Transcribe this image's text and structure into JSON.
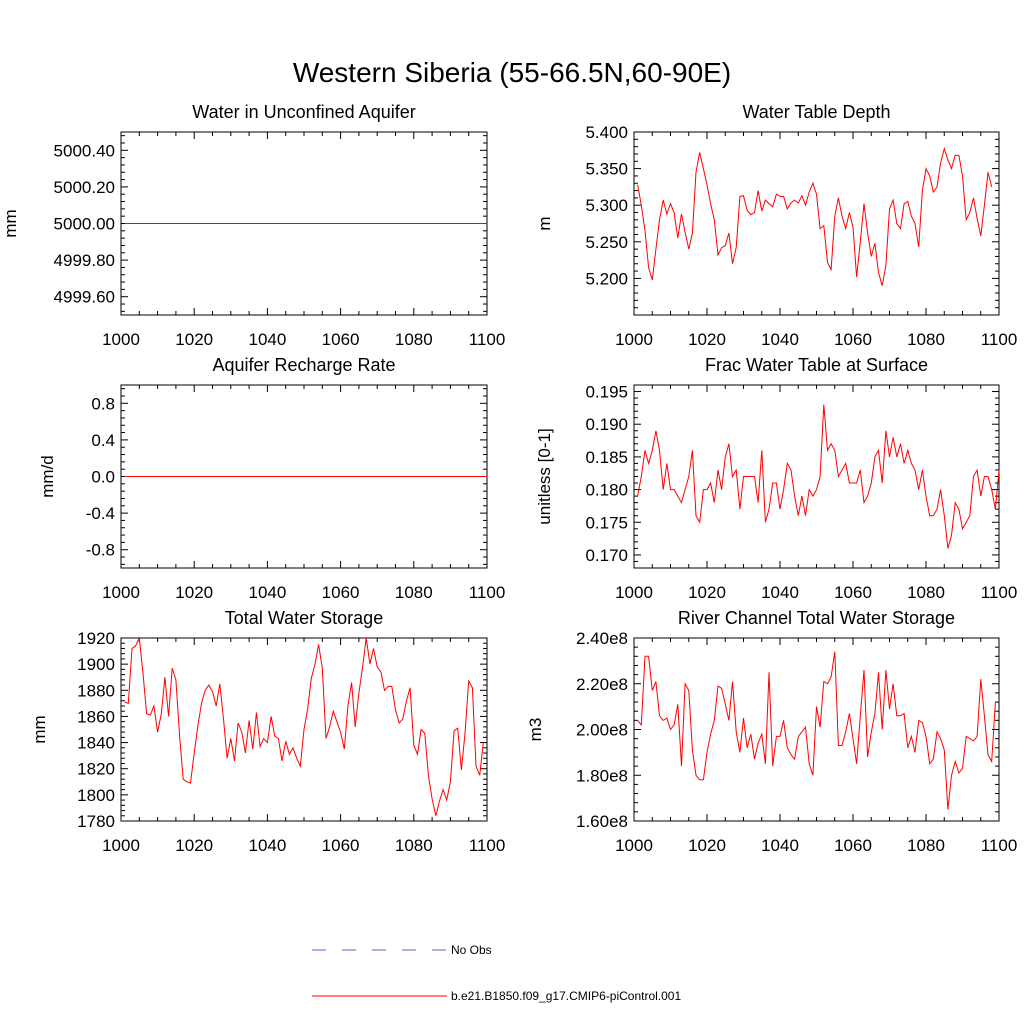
{
  "figure": {
    "title": "Western Siberia (55-66.5N,60-90E)"
  },
  "legend": {
    "entries": [
      {
        "label": "No Obs",
        "color": "#5566cc",
        "dashed": true
      },
      {
        "label": "b.e21.B1850.f09_g17.CMIP6-piControl.001",
        "color": "#ff0000",
        "dashed": false
      }
    ]
  },
  "chart_data": [
    {
      "type": "line",
      "title": "Water in Unconfined Aquifer",
      "ylabel": "mm",
      "xlim": [
        1000,
        1100
      ],
      "ylim": [
        4999.5,
        5000.5
      ],
      "xticks": [
        1000,
        1020,
        1040,
        1060,
        1080,
        1100
      ],
      "yticks": [
        4999.6,
        4999.8,
        5000.0,
        5000.2,
        5000.4
      ],
      "ytick_labels": [
        "4999.60",
        "4999.80",
        "5000.00",
        "5000.20",
        "5000.40"
      ],
      "series": [
        {
          "name": "b.e21.B1850.f09_g17.CMIP6-piControl.001",
          "color": "#ff0000",
          "x": [
            1001,
            1100
          ],
          "values": [
            5000.0,
            5000.0
          ]
        }
      ]
    },
    {
      "type": "line",
      "title": "Water Table Depth",
      "ylabel": "m",
      "xlim": [
        1000,
        1100
      ],
      "ylim": [
        5.15,
        5.4
      ],
      "xticks": [
        1000,
        1020,
        1040,
        1060,
        1080,
        1100
      ],
      "yticks": [
        5.2,
        5.25,
        5.3,
        5.35,
        5.4
      ],
      "ytick_labels": [
        "5.200",
        "5.250",
        "5.300",
        "5.350",
        "5.400"
      ],
      "series": [
        {
          "name": "b.e21.B1850.f09_g17.CMIP6-piControl.001",
          "color": "#ff0000",
          "x_start": 1001,
          "values": [
            5.328,
            5.3,
            5.265,
            5.215,
            5.198,
            5.24,
            5.28,
            5.307,
            5.288,
            5.302,
            5.29,
            5.255,
            5.288,
            5.263,
            5.24,
            5.262,
            5.345,
            5.372,
            5.35,
            5.328,
            5.302,
            5.28,
            5.232,
            5.242,
            5.245,
            5.262,
            5.22,
            5.242,
            5.312,
            5.313,
            5.293,
            5.287,
            5.29,
            5.32,
            5.292,
            5.307,
            5.302,
            5.298,
            5.315,
            5.312,
            5.312,
            5.295,
            5.303,
            5.307,
            5.303,
            5.313,
            5.3,
            5.318,
            5.33,
            5.315,
            5.268,
            5.272,
            5.222,
            5.212,
            5.285,
            5.31,
            5.285,
            5.268,
            5.29,
            5.27,
            5.202,
            5.25,
            5.302,
            5.262,
            5.23,
            5.248,
            5.208,
            5.19,
            5.218,
            5.295,
            5.307,
            5.275,
            5.268,
            5.302,
            5.305,
            5.285,
            5.275,
            5.243,
            5.32,
            5.35,
            5.34,
            5.318,
            5.325,
            5.358,
            5.377,
            5.362,
            5.35,
            5.368,
            5.368,
            5.34,
            5.28,
            5.29,
            5.31,
            5.282,
            5.258,
            5.3,
            5.345,
            5.325
          ]
        }
      ]
    },
    {
      "type": "line",
      "title": "Aquifer Recharge Rate",
      "ylabel": "mm/d",
      "xlim": [
        1000,
        1100
      ],
      "ylim": [
        -1.0,
        1.0
      ],
      "xticks": [
        1000,
        1020,
        1040,
        1060,
        1080,
        1100
      ],
      "yticks": [
        -0.8,
        -0.4,
        0.0,
        0.4,
        0.8
      ],
      "ytick_labels": [
        "-0.8",
        "-0.4",
        "0.0",
        "0.4",
        "0.8"
      ],
      "series": [
        {
          "name": "b.e21.B1850.f09_g17.CMIP6-piControl.001",
          "color": "#ff0000",
          "x": [
            1001,
            1100
          ],
          "values": [
            0.0,
            0.0
          ]
        }
      ]
    },
    {
      "type": "line",
      "title": "Frac Water Table at Surface",
      "ylabel": "unitless [0-1]",
      "xlim": [
        1000,
        1100
      ],
      "ylim": [
        0.168,
        0.196
      ],
      "xticks": [
        1000,
        1020,
        1040,
        1060,
        1080,
        1100
      ],
      "yticks": [
        0.17,
        0.175,
        0.18,
        0.185,
        0.19,
        0.195
      ],
      "ytick_labels": [
        "0.170",
        "0.175",
        "0.180",
        "0.185",
        "0.190",
        "0.195"
      ],
      "series": [
        {
          "name": "b.e21.B1850.f09_g17.CMIP6-piControl.001",
          "color": "#ff0000",
          "x_start": 1001,
          "values": [
            0.179,
            0.182,
            0.186,
            0.184,
            0.186,
            0.189,
            0.186,
            0.18,
            0.184,
            0.18,
            0.18,
            0.179,
            0.178,
            0.18,
            0.182,
            0.186,
            0.176,
            0.175,
            0.18,
            0.18,
            0.181,
            0.178,
            0.183,
            0.18,
            0.185,
            0.187,
            0.182,
            0.183,
            0.177,
            0.182,
            0.182,
            0.182,
            0.182,
            0.178,
            0.186,
            0.175,
            0.177,
            0.181,
            0.181,
            0.177,
            0.18,
            0.184,
            0.183,
            0.179,
            0.176,
            0.179,
            0.176,
            0.18,
            0.179,
            0.18,
            0.182,
            0.193,
            0.186,
            0.187,
            0.186,
            0.182,
            0.183,
            0.184,
            0.181,
            0.181,
            0.181,
            0.183,
            0.178,
            0.179,
            0.181,
            0.185,
            0.186,
            0.181,
            0.189,
            0.185,
            0.188,
            0.185,
            0.187,
            0.184,
            0.186,
            0.184,
            0.183,
            0.18,
            0.183,
            0.179,
            0.176,
            0.176,
            0.177,
            0.18,
            0.176,
            0.171,
            0.173,
            0.178,
            0.177,
            0.174,
            0.175,
            0.176,
            0.182,
            0.183,
            0.179,
            0.182,
            0.182,
            0.18,
            0.177,
            0.183
          ]
        }
      ]
    },
    {
      "type": "line",
      "title": "Total Water Storage",
      "ylabel": "mm",
      "xlim": [
        1000,
        1100
      ],
      "ylim": [
        1780,
        1920
      ],
      "xticks": [
        1000,
        1020,
        1040,
        1060,
        1080,
        1100
      ],
      "yticks": [
        1780,
        1800,
        1820,
        1840,
        1860,
        1880,
        1900,
        1920
      ],
      "ytick_labels": [
        "1780",
        "1800",
        "1820",
        "1840",
        "1860",
        "1880",
        "1900",
        "1920"
      ],
      "series": [
        {
          "name": "b.e21.B1850.f09_g17.CMIP6-piControl.001",
          "color": "#ff0000",
          "x_start": 1001,
          "values": [
            1871,
            1870,
            1912,
            1914,
            1920,
            1893,
            1862,
            1861,
            1868,
            1848,
            1862,
            1890,
            1860,
            1897,
            1888,
            1845,
            1812,
            1810,
            1809,
            1832,
            1853,
            1870,
            1880,
            1884,
            1879,
            1868,
            1885,
            1858,
            1828,
            1843,
            1826,
            1855,
            1848,
            1832,
            1857,
            1835,
            1863,
            1837,
            1843,
            1840,
            1860,
            1845,
            1843,
            1826,
            1841,
            1831,
            1836,
            1828,
            1822,
            1850,
            1866,
            1889,
            1900,
            1915,
            1897,
            1843,
            1852,
            1864,
            1856,
            1848,
            1835,
            1868,
            1886,
            1852,
            1878,
            1898,
            1920,
            1900,
            1912,
            1898,
            1894,
            1880,
            1883,
            1883,
            1865,
            1855,
            1858,
            1872,
            1882,
            1838,
            1831,
            1850,
            1847,
            1815,
            1797,
            1784,
            1795,
            1804,
            1796,
            1810,
            1849,
            1851,
            1819,
            1847,
            1887,
            1882,
            1822,
            1815,
            1840
          ]
        }
      ]
    },
    {
      "type": "line",
      "title": "River Channel Total Water Storage",
      "ylabel": "m3",
      "xlim": [
        1000,
        1100
      ],
      "ylim": [
        160000000,
        240000000
      ],
      "xticks": [
        1000,
        1020,
        1040,
        1060,
        1080,
        1100
      ],
      "yticks": [
        160000000,
        180000000,
        200000000,
        220000000,
        240000000
      ],
      "ytick_labels": [
        "1.60e8",
        "1.80e8",
        "2.00e8",
        "2.20e8",
        "2.40e8"
      ],
      "series": [
        {
          "name": "b.e21.B1850.f09_g17.CMIP6-piControl.001",
          "color": "#ff0000",
          "x_start": 1001,
          "values": [
            204000000,
            202000000,
            232000000,
            232000000,
            217000000,
            221000000,
            206000000,
            204000000,
            205000000,
            200000000,
            202000000,
            211000000,
            184000000,
            220000000,
            217000000,
            191000000,
            180000000,
            178000000,
            178000000,
            190000000,
            198000000,
            204000000,
            219000000,
            218000000,
            211000000,
            204000000,
            221000000,
            199000000,
            190000000,
            205000000,
            192000000,
            198000000,
            187000000,
            194000000,
            198000000,
            185000000,
            225000000,
            184000000,
            197000000,
            197000000,
            204000000,
            192000000,
            189000000,
            187000000,
            197000000,
            199000000,
            201000000,
            185000000,
            180000000,
            210000000,
            201000000,
            221000000,
            220000000,
            223000000,
            234000000,
            193000000,
            193000000,
            199000000,
            207000000,
            196000000,
            185000000,
            206000000,
            226000000,
            188000000,
            199000000,
            207000000,
            225000000,
            200000000,
            226000000,
            209000000,
            220000000,
            206000000,
            206000000,
            207000000,
            192000000,
            197000000,
            190000000,
            204000000,
            203000000,
            197000000,
            185000000,
            187000000,
            199000000,
            196000000,
            191000000,
            165000000,
            180000000,
            186000000,
            181000000,
            183000000,
            197000000,
            196000000,
            195000000,
            197000000,
            222000000,
            206000000,
            189000000,
            186000000,
            212000000
          ]
        }
      ]
    }
  ]
}
